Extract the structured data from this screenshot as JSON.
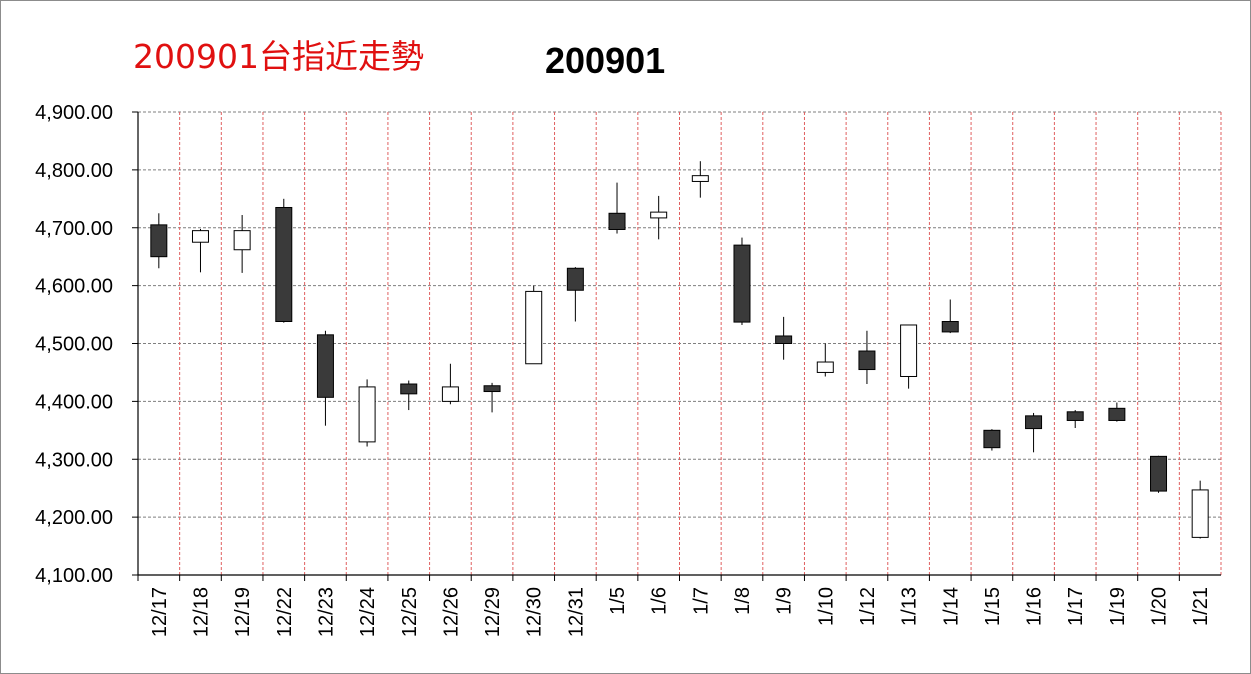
{
  "header": {
    "red_title": "200901台指近走勢"
  },
  "colors": {
    "up_fill": "#ffffff",
    "down_fill": "#3a3a3a",
    "hgrid": "#7f7f7f",
    "vgrid": "#e06060",
    "red_title": "#e01010"
  },
  "chart_data": {
    "type": "candlestick",
    "title": "200901",
    "ylim": [
      4100,
      4900
    ],
    "y_ticks": [
      "4,100.00",
      "4,200.00",
      "4,300.00",
      "4,400.00",
      "4,500.00",
      "4,600.00",
      "4,700.00",
      "4,800.00",
      "4,900.00"
    ],
    "grid": true,
    "categories": [
      "12/17",
      "12/18",
      "12/19",
      "12/22",
      "12/23",
      "12/24",
      "12/25",
      "12/26",
      "12/29",
      "12/30",
      "12/31",
      "1/5",
      "1/6",
      "1/7",
      "1/8",
      "1/9",
      "1/10",
      "1/12",
      "1/13",
      "1/14",
      "1/15",
      "1/16",
      "1/17",
      "1/19",
      "1/20",
      "1/21"
    ],
    "open": [
      4705,
      4675,
      4662,
      4735,
      4515,
      4330,
      4430,
      4400,
      4427,
      4465,
      4630,
      4725,
      4717,
      4780,
      4670,
      4513,
      4450,
      4487,
      4443,
      4538,
      4350,
      4375,
      4382,
      4388,
      4305,
      4165
    ],
    "close": [
      4650,
      4695,
      4695,
      4538,
      4407,
      4425,
      4413,
      4425,
      4417,
      4590,
      4592,
      4697,
      4727,
      4790,
      4537,
      4500,
      4468,
      4455,
      4532,
      4520,
      4320,
      4353,
      4367,
      4367,
      4245,
      4247
    ],
    "high": [
      4725,
      4698,
      4722,
      4750,
      4522,
      4438,
      4436,
      4465,
      4432,
      4600,
      4632,
      4778,
      4755,
      4815,
      4683,
      4546,
      4500,
      4522,
      4532,
      4576,
      4352,
      4380,
      4385,
      4398,
      4306,
      4263
    ],
    "low": [
      4630,
      4623,
      4622,
      4536,
      4358,
      4322,
      4385,
      4395,
      4381,
      4465,
      4538,
      4690,
      4680,
      4752,
      4532,
      4472,
      4443,
      4430,
      4422,
      4518,
      4315,
      4312,
      4354,
      4365,
      4242,
      4163
    ]
  }
}
